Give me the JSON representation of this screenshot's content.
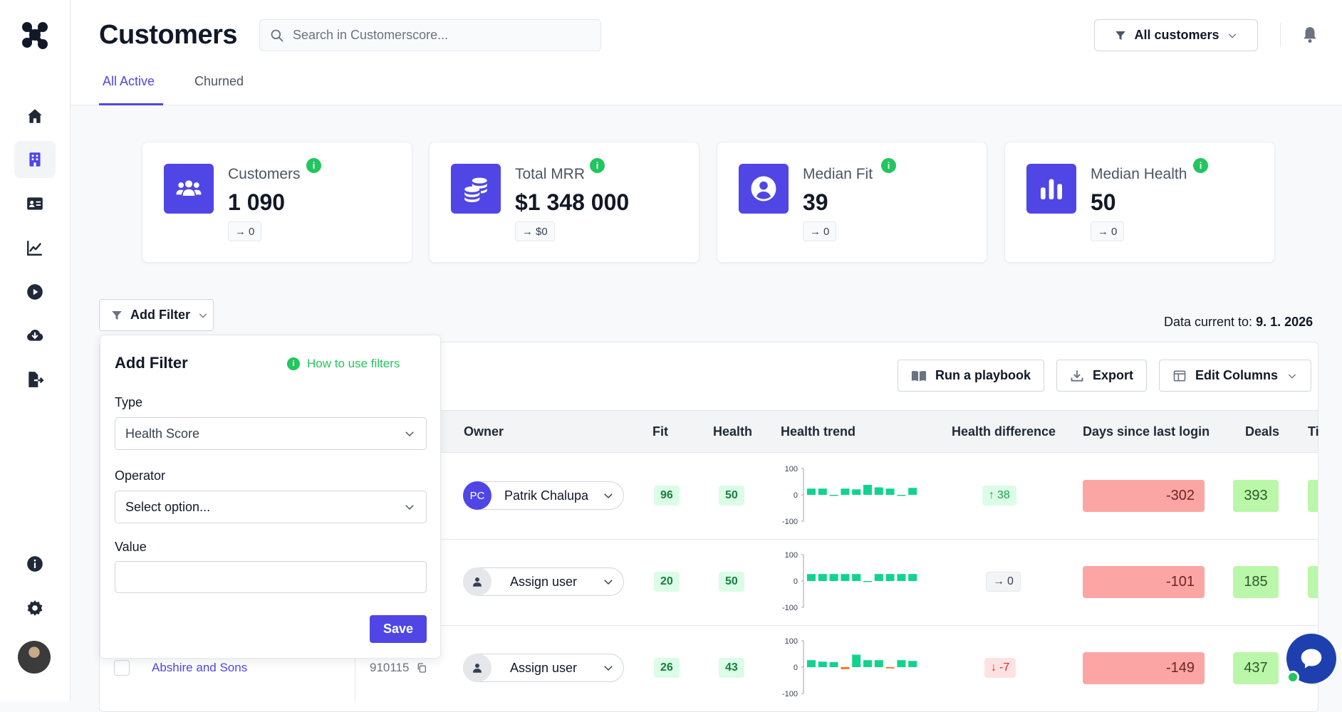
{
  "header": {
    "title": "Customers",
    "search_placeholder": "Search in Customerscore...",
    "segment_label": "All customers",
    "tabs": [
      {
        "label": "All Active",
        "active": true
      },
      {
        "label": "Churned",
        "active": false
      }
    ]
  },
  "sidebar": {
    "items": [
      {
        "name": "home",
        "icon": "home-icon"
      },
      {
        "name": "customers",
        "icon": "building-icon",
        "active": true
      },
      {
        "name": "contacts",
        "icon": "id-card-icon"
      },
      {
        "name": "analytics",
        "icon": "chart-line-icon"
      },
      {
        "name": "playbooks",
        "icon": "play-circle-icon"
      },
      {
        "name": "integrations",
        "icon": "cloud-download-icon"
      },
      {
        "name": "export",
        "icon": "file-export-icon"
      }
    ],
    "bottom": [
      {
        "name": "info",
        "icon": "info-icon"
      },
      {
        "name": "settings",
        "icon": "gear-icon"
      }
    ]
  },
  "stats": [
    {
      "label": "Customers",
      "value": "1 090",
      "delta": "0",
      "icon": "users-icon"
    },
    {
      "label": "Total MRR",
      "value": "$1 348 000",
      "delta": "$0",
      "icon": "coins-icon"
    },
    {
      "label": "Median Fit",
      "value": "39",
      "delta": "0",
      "icon": "user-circle-icon"
    },
    {
      "label": "Median Health",
      "value": "50",
      "delta": "0",
      "icon": "bar-chart-icon"
    }
  ],
  "toolbar": {
    "add_filter": "Add Filter",
    "data_current_prefix": "Data current to: ",
    "data_current_date": "9. 1. 2026",
    "run_playbook": "Run a playbook",
    "export": "Export",
    "edit_columns": "Edit Columns"
  },
  "table": {
    "columns": [
      "Owner",
      "Fit",
      "Health",
      "Health trend",
      "Health difference",
      "Days since last login",
      "Deals",
      "Ti"
    ],
    "rows": [
      {
        "owner": "Patrik Chalupa",
        "owner_initials": "PC",
        "fit": "96",
        "health": "50",
        "trend_axis": [
          "100",
          "0",
          "-100"
        ],
        "trend": [
          25,
          25,
          -3,
          25,
          22,
          40,
          30,
          25,
          -3,
          28
        ],
        "hdiff": "38",
        "hdiff_dir": "up",
        "last_login": "-302",
        "deals": "393"
      },
      {
        "owner": "Assign user",
        "owner_initials": "",
        "fit": "20",
        "health": "50",
        "trend_axis": [
          "100",
          "0",
          "-100"
        ],
        "trend": [
          28,
          28,
          28,
          28,
          28,
          -3,
          28,
          28,
          28,
          28
        ],
        "hdiff": "0",
        "hdiff_dir": "neutral",
        "last_login": "-101",
        "deals": "185"
      },
      {
        "name": "Abshire and Sons",
        "id": "910115",
        "owner": "Assign user",
        "owner_initials": "",
        "fit": "26",
        "health": "43",
        "trend_axis": [
          "100",
          "0",
          "-100"
        ],
        "trend": [
          28,
          22,
          20,
          -8,
          50,
          28,
          28,
          -5,
          28,
          25
        ],
        "hdiff": "-7",
        "hdiff_dir": "down",
        "last_login": "-149",
        "deals": "437"
      }
    ]
  },
  "filter_popup": {
    "title": "Add Filter",
    "help": "How to use filters",
    "type_label": "Type",
    "type_value": "Health Score",
    "operator_label": "Operator",
    "operator_placeholder": "Select option...",
    "value_label": "Value",
    "value": "",
    "save": "Save"
  },
  "colors": {
    "accent": "#4f46e5",
    "positive": "#22c55e",
    "bar": "#10d48e",
    "bar_negative": "#f97316",
    "login_bad": "#fca5a5",
    "deals_good": "#bbf7a9"
  }
}
